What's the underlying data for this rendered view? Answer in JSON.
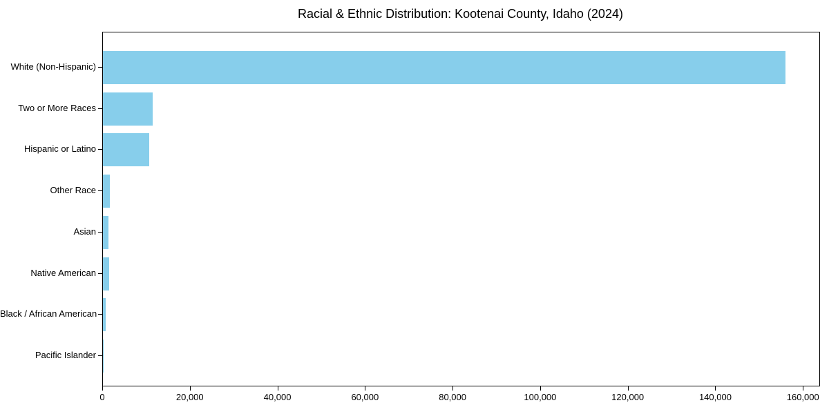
{
  "title": "Racial & Ethnic Distribution: Kootenai County, Idaho (2024)",
  "chart_data": {
    "type": "bar",
    "orientation": "horizontal",
    "title": "Racial & Ethnic Distribution: Kootenai County, Idaho (2024)",
    "categories": [
      "White (Non-Hispanic)",
      "Two or More Races",
      "Hispanic or Latino",
      "Other Race",
      "Asian",
      "Native American",
      "Black / African American",
      "Pacific Islander"
    ],
    "values": [
      155800,
      11400,
      10500,
      1600,
      1300,
      1400,
      600,
      100
    ],
    "bar_color": "#87CEEB",
    "axis_color": "#000000",
    "background_color": "#ffffff",
    "xlabel": "",
    "ylabel": "",
    "xlim": [
      0,
      163590
    ],
    "x_ticks": [
      0,
      20000,
      40000,
      60000,
      80000,
      100000,
      120000,
      140000,
      160000
    ],
    "x_tick_labels": [
      "0",
      "20,000",
      "40,000",
      "60,000",
      "80,000",
      "100,000",
      "120,000",
      "140,000",
      "160,000"
    ],
    "grid": false,
    "legend": null
  }
}
